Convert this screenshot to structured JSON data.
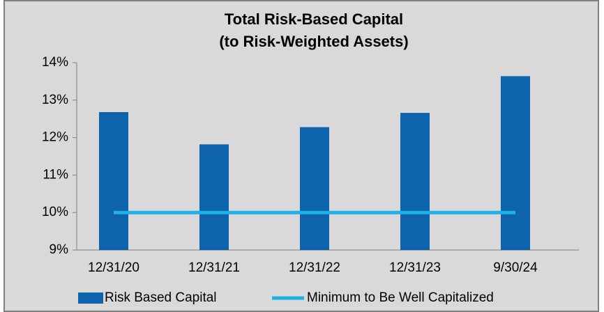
{
  "chart_data": {
    "type": "bar",
    "title": "Total Risk-Based Capital",
    "subtitle": "(to Risk-Weighted Assets)",
    "categories": [
      "12/31/20",
      "12/31/21",
      "12/31/22",
      "12/31/23",
      "9/30/24"
    ],
    "series": [
      {
        "name": "Risk Based Capital",
        "type": "bar",
        "color": "#0e63ad",
        "values": [
          12.68,
          11.82,
          12.28,
          12.66,
          13.64
        ]
      },
      {
        "name": "Minimum to Be Well Capitalized",
        "type": "line",
        "color": "#1fb0e8",
        "values": [
          10,
          10,
          10,
          10,
          10
        ]
      }
    ],
    "ylim": [
      9,
      14
    ],
    "yticks": [
      {
        "value": 9,
        "label": "9%"
      },
      {
        "value": 10,
        "label": "10%"
      },
      {
        "value": 11,
        "label": "11%"
      },
      {
        "value": 12,
        "label": "12%"
      },
      {
        "value": 13,
        "label": "13%"
      },
      {
        "value": 14,
        "label": "14%"
      }
    ],
    "legend": "bottom"
  }
}
